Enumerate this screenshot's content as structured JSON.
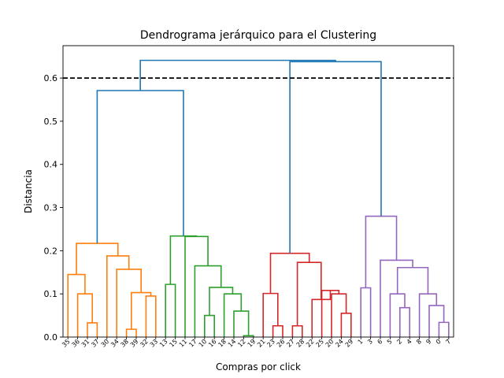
{
  "chart_data": {
    "type": "dendrogram",
    "title": "Dendrograma jerárquico para el Clustering",
    "xlabel": "Compras por click",
    "ylabel": "Distancia",
    "ylim": [
      0,
      0.675
    ],
    "yticks": [
      0.0,
      0.1,
      0.2,
      0.3,
      0.4,
      0.5,
      0.6
    ],
    "ytick_labels": [
      "0.0",
      "0.1",
      "0.2",
      "0.3",
      "0.4",
      "0.5",
      "0.6"
    ],
    "threshold": 0.6,
    "leaves": [
      "35",
      "36",
      "31",
      "37",
      "30",
      "34",
      "38",
      "39",
      "32",
      "33",
      "13",
      "15",
      "11",
      "17",
      "10",
      "16",
      "18",
      "14",
      "12",
      "19",
      "21",
      "23",
      "26",
      "27",
      "28",
      "22",
      "25",
      "20",
      "24",
      "29",
      "1",
      "3",
      "6",
      "5",
      "2",
      "4",
      "8",
      "9",
      "0",
      "7"
    ],
    "colors": {
      "orange": "#ff7f0e",
      "green": "#2ca02c",
      "red": "#d62728",
      "purple": "#9467bd",
      "blue": "#1f77b4",
      "threshold": "#000000"
    },
    "merges": [
      {
        "l": 2,
        "r": 3,
        "h": 0.033,
        "color": "orange"
      },
      {
        "l": 1,
        "r": 40,
        "h": 0.1,
        "color": "orange"
      },
      {
        "l": 0,
        "r": 41,
        "h": 0.145,
        "color": "orange"
      },
      {
        "l": 6,
        "r": 7,
        "h": 0.018,
        "color": "orange"
      },
      {
        "l": 8,
        "r": 9,
        "h": 0.095,
        "color": "orange"
      },
      {
        "l": 43,
        "r": 44,
        "h": 0.103,
        "color": "orange"
      },
      {
        "l": 5,
        "r": 45,
        "h": 0.157,
        "color": "orange"
      },
      {
        "l": 4,
        "r": 46,
        "h": 0.188,
        "color": "orange"
      },
      {
        "l": 42,
        "r": 47,
        "h": 0.217,
        "color": "orange"
      },
      {
        "l": 10,
        "r": 11,
        "h": 0.122,
        "color": "green"
      },
      {
        "l": 14,
        "r": 15,
        "h": 0.05,
        "color": "green"
      },
      {
        "l": 18,
        "r": 19,
        "h": 0.003,
        "color": "green"
      },
      {
        "l": 17,
        "r": 51,
        "h": 0.06,
        "color": "green"
      },
      {
        "l": 16,
        "r": 52,
        "h": 0.1,
        "color": "green"
      },
      {
        "l": 50,
        "r": 53,
        "h": 0.115,
        "color": "green"
      },
      {
        "l": 13,
        "r": 54,
        "h": 0.165,
        "color": "green"
      },
      {
        "l": 12,
        "r": 55,
        "h": 0.233,
        "color": "green"
      },
      {
        "l": 49,
        "r": 56,
        "h": 0.234,
        "color": "green"
      },
      {
        "l": 48,
        "r": 57,
        "h": 0.571,
        "color": "blue"
      },
      {
        "l": 21,
        "r": 22,
        "h": 0.026,
        "color": "red"
      },
      {
        "l": 20,
        "r": 59,
        "h": 0.101,
        "color": "red"
      },
      {
        "l": 23,
        "r": 24,
        "h": 0.026,
        "color": "red"
      },
      {
        "l": 28,
        "r": 29,
        "h": 0.055,
        "color": "red"
      },
      {
        "l": 27,
        "r": 62,
        "h": 0.1,
        "color": "red"
      },
      {
        "l": 26,
        "r": 63,
        "h": 0.108,
        "color": "red"
      },
      {
        "l": 25,
        "r": 64,
        "h": 0.087,
        "color": "red"
      },
      {
        "l": 61,
        "r": 65,
        "h": 0.173,
        "color": "red"
      },
      {
        "l": 60,
        "r": 66,
        "h": 0.194,
        "color": "red"
      },
      {
        "l": 30,
        "r": 31,
        "h": 0.114,
        "color": "purple"
      },
      {
        "l": 34,
        "r": 35,
        "h": 0.068,
        "color": "purple"
      },
      {
        "l": 33,
        "r": 69,
        "h": 0.1,
        "color": "purple"
      },
      {
        "l": 38,
        "r": 39,
        "h": 0.034,
        "color": "purple"
      },
      {
        "l": 37,
        "r": 71,
        "h": 0.073,
        "color": "purple"
      },
      {
        "l": 36,
        "r": 72,
        "h": 0.1,
        "color": "purple"
      },
      {
        "l": 70,
        "r": 73,
        "h": 0.161,
        "color": "purple"
      },
      {
        "l": 32,
        "r": 74,
        "h": 0.178,
        "color": "purple"
      },
      {
        "l": 68,
        "r": 75,
        "h": 0.28,
        "color": "purple"
      },
      {
        "l": 67,
        "r": 76,
        "h": 0.638,
        "color": "blue"
      },
      {
        "l": 58,
        "r": 77,
        "h": 0.641,
        "color": "blue"
      }
    ]
  }
}
